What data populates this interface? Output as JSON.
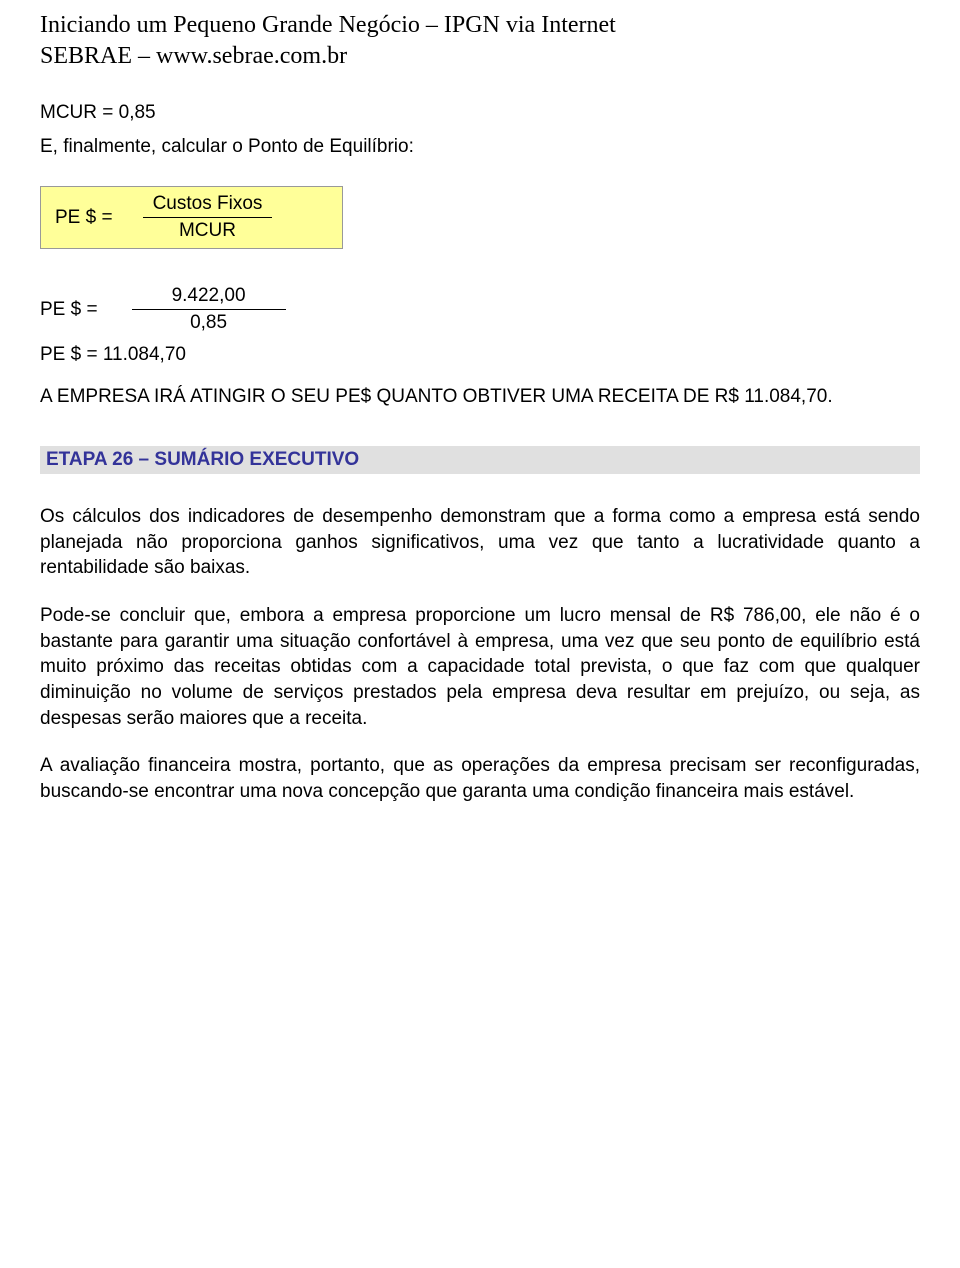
{
  "header": {
    "title": "Iniciando um Pequeno Grande Negócio – IPGN via Internet",
    "subtitle": "SEBRAE – www.sebrae.com.br"
  },
  "intro": {
    "line1": "MCUR = 0,85",
    "line2": "E, finalmente, calcular o Ponto de Equilíbrio:"
  },
  "formula": {
    "left": "PE $   =",
    "numerator": "Custos Fixos",
    "denominator": "MCUR",
    "background_color": "#ffff99",
    "border_color": "#999999"
  },
  "calculation": {
    "left": "PE $   =",
    "numerator": "9.422,00",
    "denominator": "0,85"
  },
  "result": "PE $ = 11.084,70",
  "conclusion": "A EMPRESA IRÁ ATINGIR O SEU PE$ QUANTO OBTIVER UMA RECEITA DE R$ 11.084,70.",
  "section": {
    "title": "ETAPA 26 – SUMÁRIO EXECUTIVO",
    "background_color": "#e0e0e0",
    "text_color": "#333399"
  },
  "paragraphs": {
    "p1": "Os cálculos dos indicadores de desempenho demonstram que a forma como a empresa está sendo planejada não proporciona ganhos significativos, uma vez que tanto a lucratividade quanto a rentabilidade são baixas.",
    "p2": "Pode-se concluir que, embora a empresa proporcione um lucro mensal de R$ 786,00, ele não é o bastante para garantir uma situação confortável à empresa, uma vez que seu ponto de equilíbrio está muito próximo das receitas obtidas com a capacidade total prevista, o que faz com que qualquer diminuição no volume de serviços prestados pela empresa deva resultar em prejuízo, ou seja, as despesas serão maiores que a receita.",
    "p3": "A avaliação financeira mostra, portanto, que as operações da empresa precisam ser reconfiguradas, buscando-se encontrar uma nova concepção que garanta uma condição financeira mais estável."
  }
}
